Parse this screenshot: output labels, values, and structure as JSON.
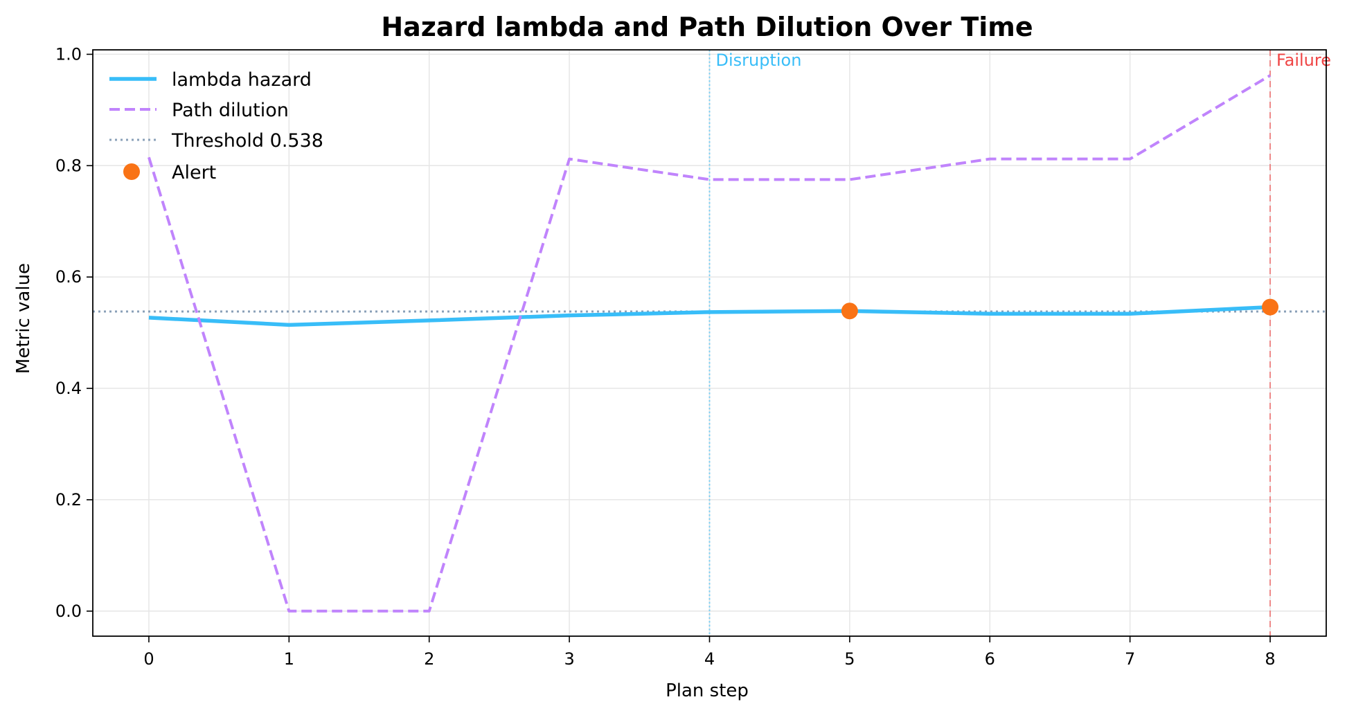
{
  "chart_data": {
    "type": "line",
    "title": "Hazard lambda and Path Dilution Over Time",
    "xlabel": "Plan step",
    "ylabel": "Metric value",
    "x": [
      0,
      1,
      2,
      3,
      4,
      5,
      6,
      7,
      8
    ],
    "xlim": [
      -0.4,
      8.4
    ],
    "ylim": [
      -0.045,
      1.008
    ],
    "x_ticks": [
      "0",
      "1",
      "2",
      "3",
      "4",
      "5",
      "6",
      "7",
      "8"
    ],
    "y_ticks": [
      "0.0",
      "0.2",
      "0.4",
      "0.6",
      "0.8",
      "1.0"
    ],
    "grid": true,
    "legend_position": "top-left",
    "series": [
      {
        "name": "lambda hazard",
        "style": "solid",
        "color": "#38bdf8",
        "values": [
          0.527,
          0.514,
          0.522,
          0.531,
          0.537,
          0.539,
          0.534,
          0.534,
          0.546
        ]
      },
      {
        "name": "Path dilution",
        "style": "dashed",
        "color": "#c084fc",
        "values": [
          0.815,
          0.0,
          0.0,
          0.812,
          0.775,
          0.775,
          0.812,
          0.812,
          0.962
        ]
      }
    ],
    "threshold": {
      "name": "Threshold 0.538",
      "value": 0.538,
      "color": "#8aa0b8"
    },
    "alerts": {
      "name": "Alert",
      "color": "#f97316",
      "x": [
        5,
        8
      ],
      "y": [
        0.539,
        0.546
      ]
    },
    "annotations": [
      {
        "label": "Disruption",
        "x": 4,
        "color": "#38bdf8",
        "style": "dotted"
      },
      {
        "label": "Failure",
        "x": 8,
        "color": "#ef4444",
        "style": "dashed"
      }
    ]
  }
}
